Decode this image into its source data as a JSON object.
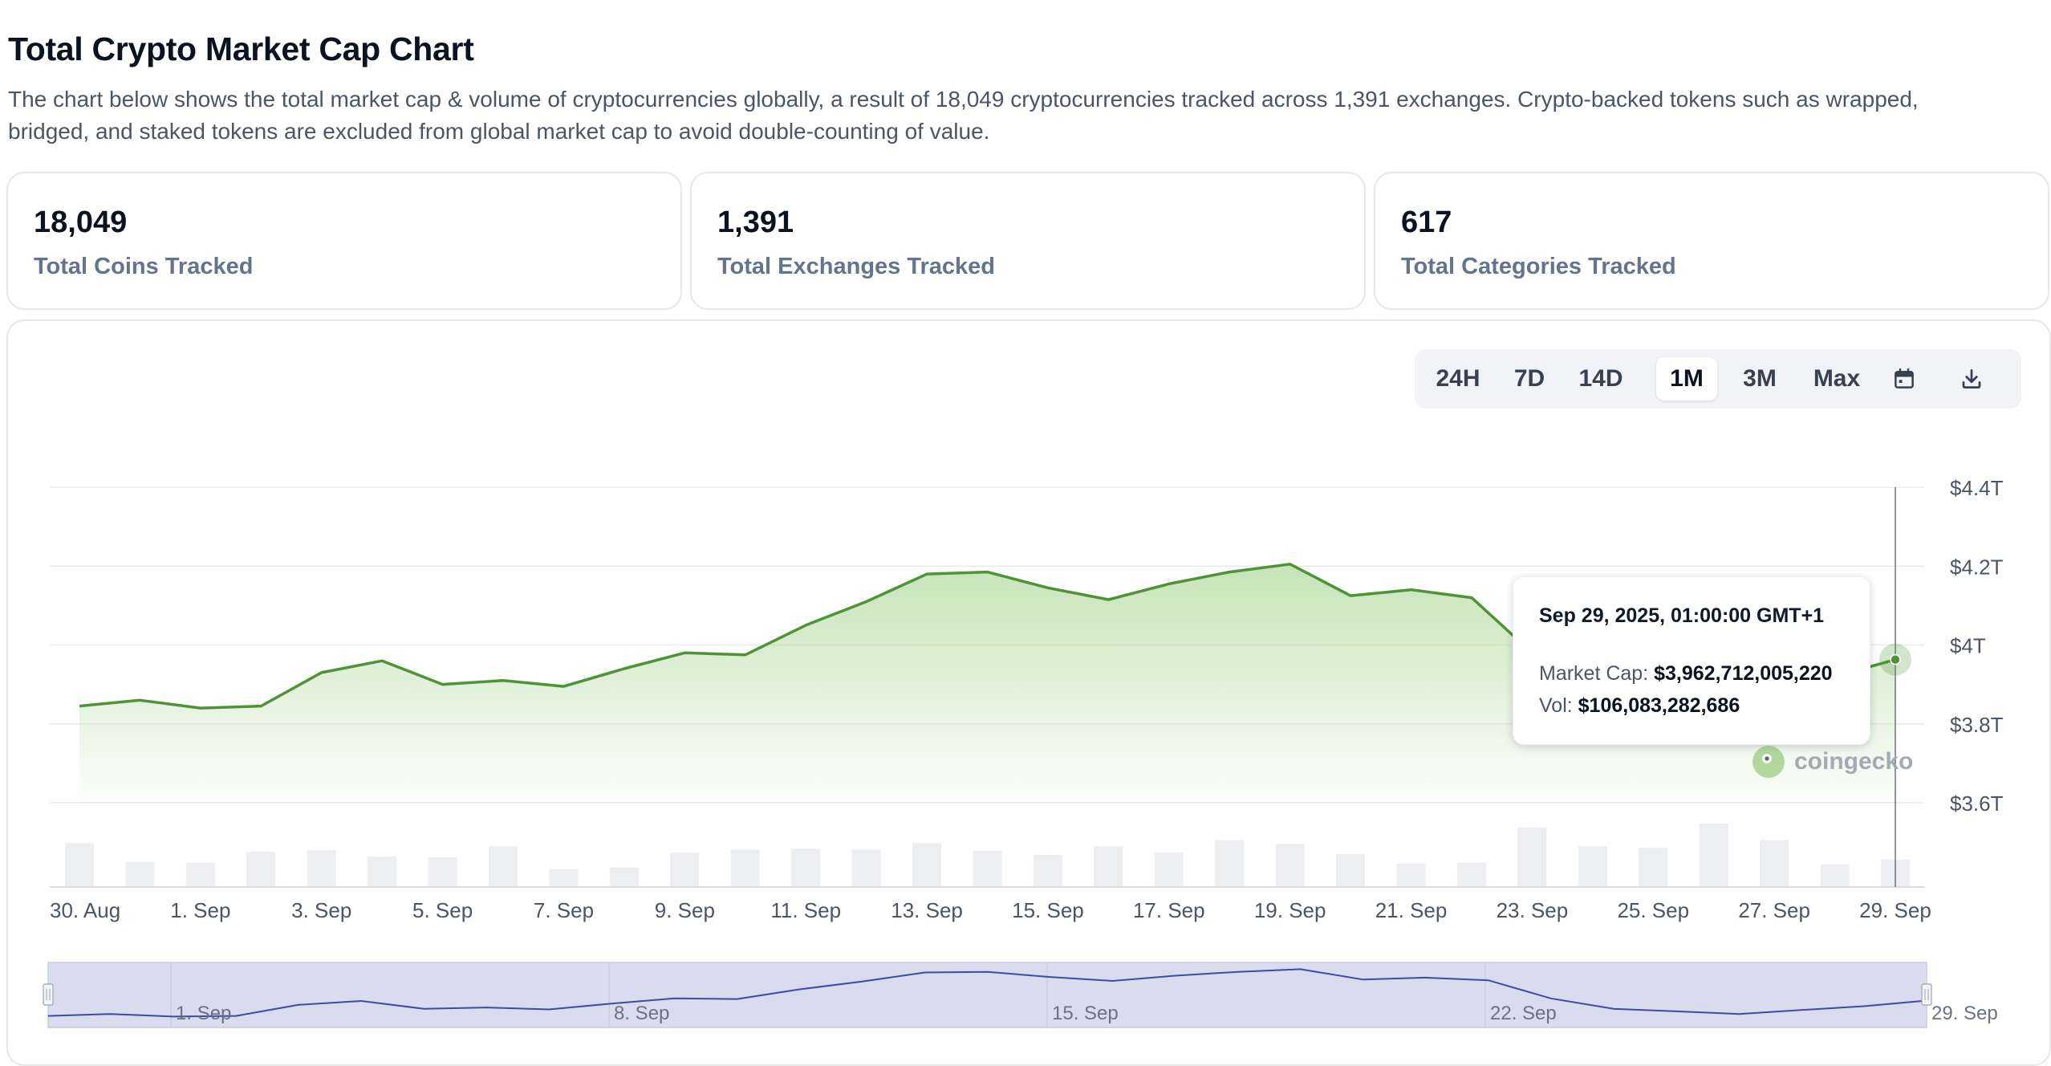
{
  "header": {
    "title": "Total Crypto Market Cap Chart",
    "description": "The chart below shows the total market cap & volume of cryptocurrencies globally, a result of 18,049 cryptocurrencies tracked across 1,391 exchanges. Crypto-backed tokens such as wrapped, bridged, and staked tokens are excluded from global market cap to avoid double-counting of value."
  },
  "stats": [
    {
      "value": "18,049",
      "label": "Total Coins Tracked"
    },
    {
      "value": "1,391",
      "label": "Total Exchanges Tracked"
    },
    {
      "value": "617",
      "label": "Total Categories Tracked"
    }
  ],
  "toolbar": {
    "ranges": [
      "24H",
      "7D",
      "14D",
      "1M",
      "3M",
      "Max"
    ],
    "active_range": "1M",
    "icons": [
      "calendar-icon",
      "download-icon"
    ]
  },
  "tooltip": {
    "date": "Sep 29, 2025, 01:00:00 GMT+1",
    "market_cap_label": "Market Cap:",
    "market_cap_value": "$3,962,712,005,220",
    "vol_label": "Vol:",
    "vol_value": "$106,083,282,686"
  },
  "watermark": "coingecko",
  "colors": {
    "line": "#4f9237",
    "area_top": "#bfe0ae",
    "volume": "#eceef2",
    "navigator_fill": "#d9dcef",
    "navigator_line": "#3d4aa6"
  },
  "chart_data": {
    "type": "area",
    "x_tick_labels": [
      "30. Aug",
      "1. Sep",
      "3. Sep",
      "5. Sep",
      "7. Sep",
      "9. Sep",
      "11. Sep",
      "13. Sep",
      "15. Sep",
      "17. Sep",
      "19. Sep",
      "21. Sep",
      "23. Sep",
      "25. Sep",
      "27. Sep",
      "29. Sep"
    ],
    "y_tick_labels": [
      "$4.4T",
      "$4.2T",
      "$4T",
      "$3.8T",
      "$3.6T"
    ],
    "y_ticks": [
      4.4,
      4.2,
      4.0,
      3.8,
      3.6
    ],
    "ylim": [
      3.4,
      4.4
    ],
    "y_unit": "trillion USD",
    "x": [
      "30. Aug",
      "31. Aug",
      "1. Sep",
      "2. Sep",
      "3. Sep",
      "4. Sep",
      "5. Sep",
      "6. Sep",
      "7. Sep",
      "8. Sep",
      "9. Sep",
      "10. Sep",
      "11. Sep",
      "12. Sep",
      "13. Sep",
      "14. Sep",
      "15. Sep",
      "16. Sep",
      "17. Sep",
      "18. Sep",
      "19. Sep",
      "20. Sep",
      "21. Sep",
      "22. Sep",
      "23. Sep",
      "24. Sep",
      "25. Sep",
      "26. Sep",
      "27. Sep",
      "28. Sep",
      "29. Sep"
    ],
    "series": [
      {
        "name": "Market Cap",
        "values": [
          3.845,
          3.86,
          3.84,
          3.845,
          3.93,
          3.96,
          3.9,
          3.91,
          3.895,
          3.94,
          3.98,
          3.975,
          4.05,
          4.11,
          4.18,
          4.185,
          4.145,
          4.115,
          4.155,
          4.185,
          4.205,
          4.125,
          4.14,
          4.12,
          3.98,
          3.9,
          3.88,
          3.86,
          3.89,
          3.92,
          3.963
        ]
      },
      {
        "name": "Vol",
        "values": [
          110,
          62,
          60,
          88,
          92,
          76,
          74,
          102,
          44,
          48,
          86,
          94,
          96,
          94,
          110,
          90,
          80,
          102,
          86,
          118,
          108,
          82,
          58,
          60,
          150,
          102,
          98,
          160,
          118,
          56,
          68
        ]
      }
    ],
    "navigator": {
      "tick_labels": [
        "1. Sep",
        "8. Sep",
        "15. Sep",
        "22. Sep",
        "29. Sep"
      ]
    },
    "grid": true,
    "legend": "none"
  }
}
